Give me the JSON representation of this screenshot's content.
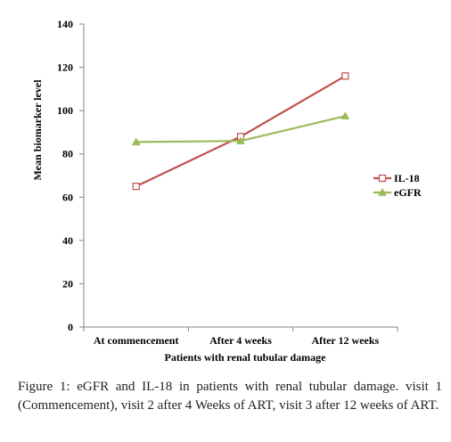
{
  "chart_data": {
    "type": "line",
    "categories": [
      "At commencement",
      "After 4 weeks",
      "After 12 weeks"
    ],
    "series": [
      {
        "name": "IL-18",
        "values": [
          65,
          88,
          116
        ],
        "color": "#c0504d",
        "marker": "square-open"
      },
      {
        "name": "eGFR",
        "values": [
          85.5,
          86,
          97.5
        ],
        "color": "#9bbb59",
        "marker": "triangle"
      }
    ],
    "xlabel": "Patients with renal tubular damage",
    "ylabel": "Mean biomarker level",
    "ylim": [
      0,
      140
    ],
    "yticks": [
      0,
      20,
      40,
      60,
      80,
      100,
      120,
      140
    ],
    "grid": false,
    "legend_position": "right"
  },
  "caption": {
    "label": "Figure 1:",
    "text": "eGFR and IL-18 in patients with renal tubular damage. visit 1 (Commencement), visit 2 after 4 Weeks of ART, visit 3 after 12 weeks of ART."
  }
}
